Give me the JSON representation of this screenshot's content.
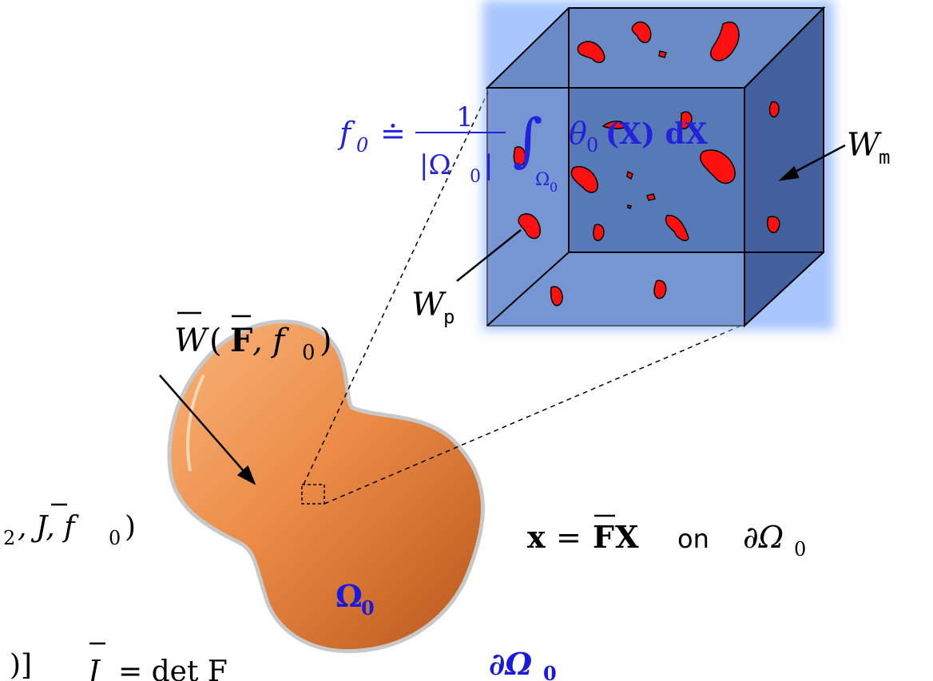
{
  "colors": {
    "cube_fill": "#4e6fb0",
    "cube_glow": "#9fc0ff",
    "inclusion": "#ff1010",
    "body_light": "#f5a060",
    "body_dark": "#c86422",
    "label_blue": "#1a1adc",
    "equation_blue": "#2222dd"
  },
  "equations": {
    "f0_lhs": "f",
    "f0_sub": "0",
    "f0_dot_eq": "≐",
    "f0_frac_num": "1",
    "f0_frac_den": "|Ω",
    "f0_frac_den_sub": "0",
    "f0_frac_den_close": "|",
    "f0_integral": "∫",
    "f0_int_sub": "Ω",
    "f0_int_subsub": "0",
    "f0_integrand": "θ",
    "f0_integrand_sub": "0",
    "f0_integrand_arg": "(X) dX",
    "energy_W": "W",
    "energy_args_open": "(",
    "energy_F": "F",
    "energy_comma": ", f",
    "energy_f_sub": "0",
    "energy_close": ")",
    "left_partial_1": "",
    "left_partial_1b": "2",
    "left_partial_1c": ", J, f",
    "left_partial_1d": "0",
    "left_partial_1e": ")",
    "left_partial_2a": "",
    "left_partial_2b": ")]",
    "left_partial_2c": "J",
    "left_partial_2d": "= det F",
    "bc_x": "x",
    "bc_eq": "=",
    "bc_F": "F",
    "bc_X": "X",
    "bc_on": "on",
    "bc_boundary": "∂Ω",
    "bc_boundary_sub": "0"
  },
  "labels": {
    "matrix": "W",
    "matrix_sub": "m",
    "particle": "W",
    "particle_sub": "p",
    "domain": "Ω",
    "domain_sub": "0",
    "boundary": "∂Ω",
    "boundary_sub": "0"
  },
  "icons": {
    "rve_cube": "cube-icon",
    "body": "blob-shape"
  }
}
